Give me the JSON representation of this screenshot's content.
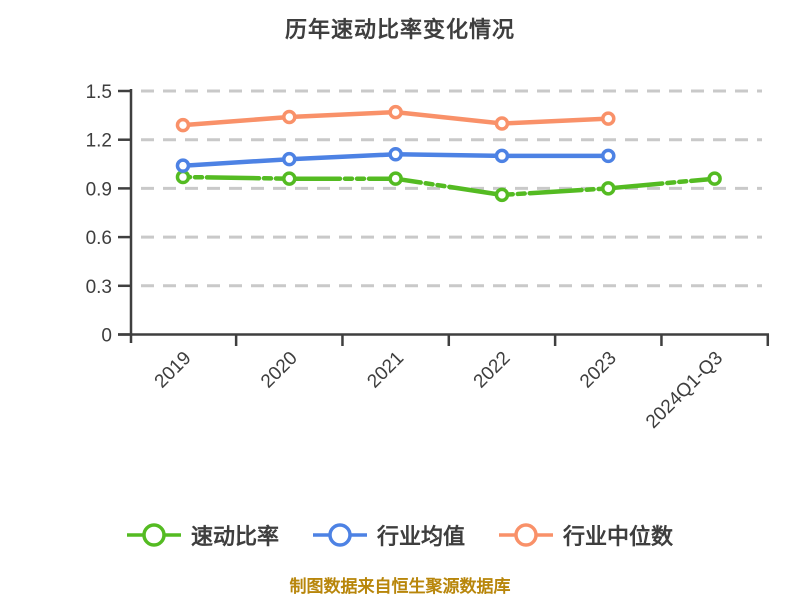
{
  "title": "历年速动比率变化情况",
  "caption": "制图数据来自恒生聚源数据库",
  "legend": {
    "items": [
      "速动比率",
      "行业均值",
      "行业中位数"
    ]
  },
  "chart_data": {
    "type": "line",
    "title": "历年速动比率变化情况",
    "categories": [
      "2019",
      "2020",
      "2021",
      "2022",
      "2023",
      "2024Q1-Q3"
    ],
    "series": [
      {
        "name": "速动比率",
        "color": "#54bb22",
        "line_style": "dash-dot",
        "marker": "circle-white-fill",
        "values": [
          0.97,
          0.96,
          0.96,
          0.86,
          0.9,
          0.96
        ]
      },
      {
        "name": "行业均值",
        "color": "#4d82e4",
        "line_style": "solid",
        "marker": "circle-white-fill",
        "values": [
          1.04,
          1.08,
          1.11,
          1.1,
          1.1,
          null
        ]
      },
      {
        "name": "行业中位数",
        "color": "#f99169",
        "line_style": "solid",
        "marker": "circle-white-fill",
        "values": [
          1.29,
          1.34,
          1.37,
          1.3,
          1.33,
          null
        ]
      }
    ],
    "ylim": [
      0,
      1.5
    ],
    "yticks": [
      "0",
      "0.3",
      "0.6",
      "0.9",
      "1.2",
      "1.5"
    ],
    "grid": "horizontal-dashed",
    "legend_position": "bottom"
  },
  "colors": {
    "background": "#ffffff",
    "axis": "#3f3f3f",
    "grid": "#c9c9c9",
    "text": "#3e3e3e",
    "caption": "#b8860b",
    "marker_fill": "#ffffff"
  }
}
